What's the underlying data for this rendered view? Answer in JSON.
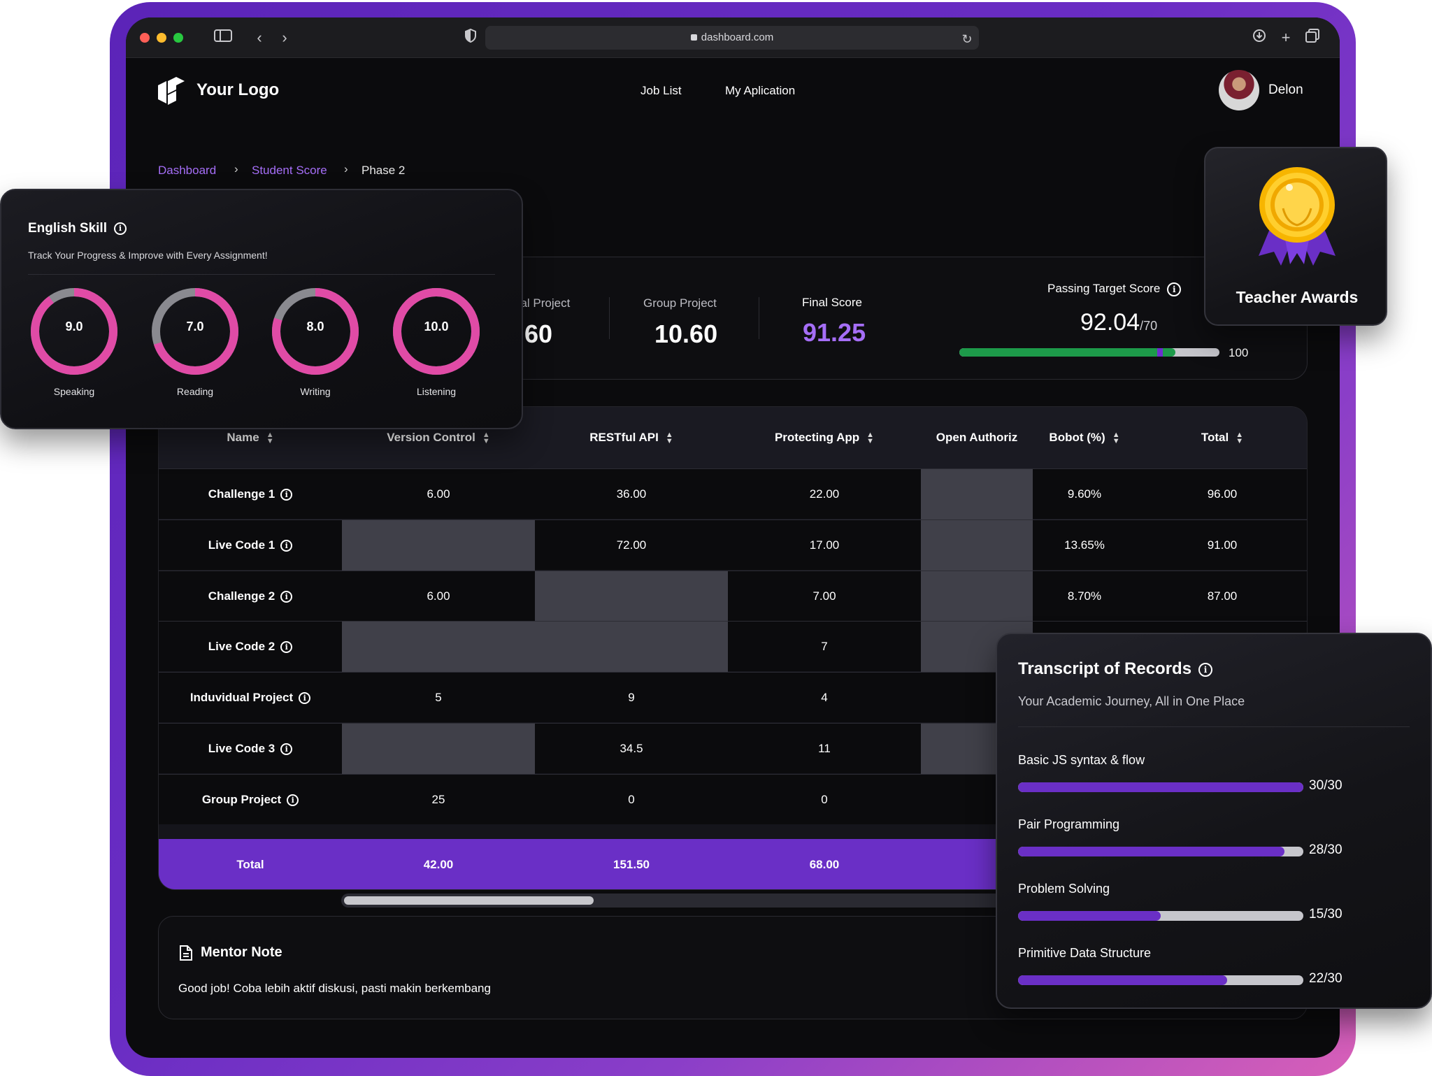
{
  "browser": {
    "url": "dashboard.com"
  },
  "nav": {
    "logo_text": "Your Logo",
    "links": [
      "Job List",
      "My Aplication"
    ],
    "user_name": "Delon"
  },
  "breadcrumb": [
    "Dashboard",
    "Student Score",
    "Phase 2"
  ],
  "scores": {
    "individual_label": "ual Project",
    "individual_value": ".60",
    "group_label": "Group Project",
    "group_value": "10.60",
    "final_label": "Final Score",
    "final_value": "91.25",
    "target_label": "Passing Target Score",
    "target_value": "92.04",
    "target_suffix": "/70",
    "target_max": "100",
    "target_progress_pct": 83,
    "target_marker_pct": 76,
    "final_color": "#a56ef7"
  },
  "table": {
    "headers": [
      "Name",
      "Version Control",
      "RESTful API",
      "Protecting App",
      "Open Authoriz",
      "Bobot (%)",
      "Total"
    ],
    "rows": [
      {
        "name": "Challenge 1",
        "cells": [
          "6.00",
          "36.00",
          "22.00",
          "",
          "9.60%",
          "96.00"
        ]
      },
      {
        "name": "Live Code 1",
        "cells": [
          "",
          "72.00",
          "17.00",
          "",
          "13.65%",
          "91.00"
        ]
      },
      {
        "name": "Challenge 2",
        "cells": [
          "6.00",
          "",
          "7.00",
          "",
          "8.70%",
          "87.00"
        ]
      },
      {
        "name": "Live Code 2",
        "cells": [
          "",
          "",
          "7",
          "",
          "",
          ""
        ]
      },
      {
        "name": "Induvidual Project",
        "cells": [
          "5",
          "9",
          "4",
          "",
          "",
          ""
        ]
      },
      {
        "name": "Live Code 3",
        "cells": [
          "",
          "34.5",
          "11",
          "",
          "",
          ""
        ]
      },
      {
        "name": "Group Project",
        "cells": [
          "25",
          "0",
          "0",
          "",
          "",
          ""
        ]
      }
    ],
    "total": {
      "name": "Total",
      "cells": [
        "42.00",
        "151.50",
        "68.00"
      ]
    }
  },
  "mentor": {
    "title": "Mentor Note",
    "text": "Good job! Coba lebih aktif diskusi, pasti makin berkembang"
  },
  "english": {
    "title": "English Skill",
    "subtitle": "Track Your Progress & Improve with Every Assignment!",
    "skills": [
      {
        "label": "Speaking",
        "value": "9.0",
        "score": 9.0
      },
      {
        "label": "Reading",
        "value": "7.0",
        "score": 7.0
      },
      {
        "label": "Writing",
        "value": "8.0",
        "score": 8.0
      },
      {
        "label": "Listening",
        "value": "10.0",
        "score": 10.0
      }
    ],
    "ring_color": "#e04ba6",
    "track_color": "#8a8a90"
  },
  "award": {
    "title": "Teacher Awards"
  },
  "transcript": {
    "title": "Transcript of Records",
    "subtitle": "Your Academic Journey, All in One Place",
    "items": [
      {
        "label": "Basic JS syntax & flow",
        "value": "30/30",
        "score": 30,
        "max": 30
      },
      {
        "label": "Pair Programming",
        "value": "28/30",
        "score": 28,
        "max": 30
      },
      {
        "label": "Problem Solving",
        "value": "15/30",
        "score": 15,
        "max": 30
      },
      {
        "label": "Primitive Data Structure",
        "value": "22/30",
        "score": 22,
        "max": 30
      }
    ]
  }
}
